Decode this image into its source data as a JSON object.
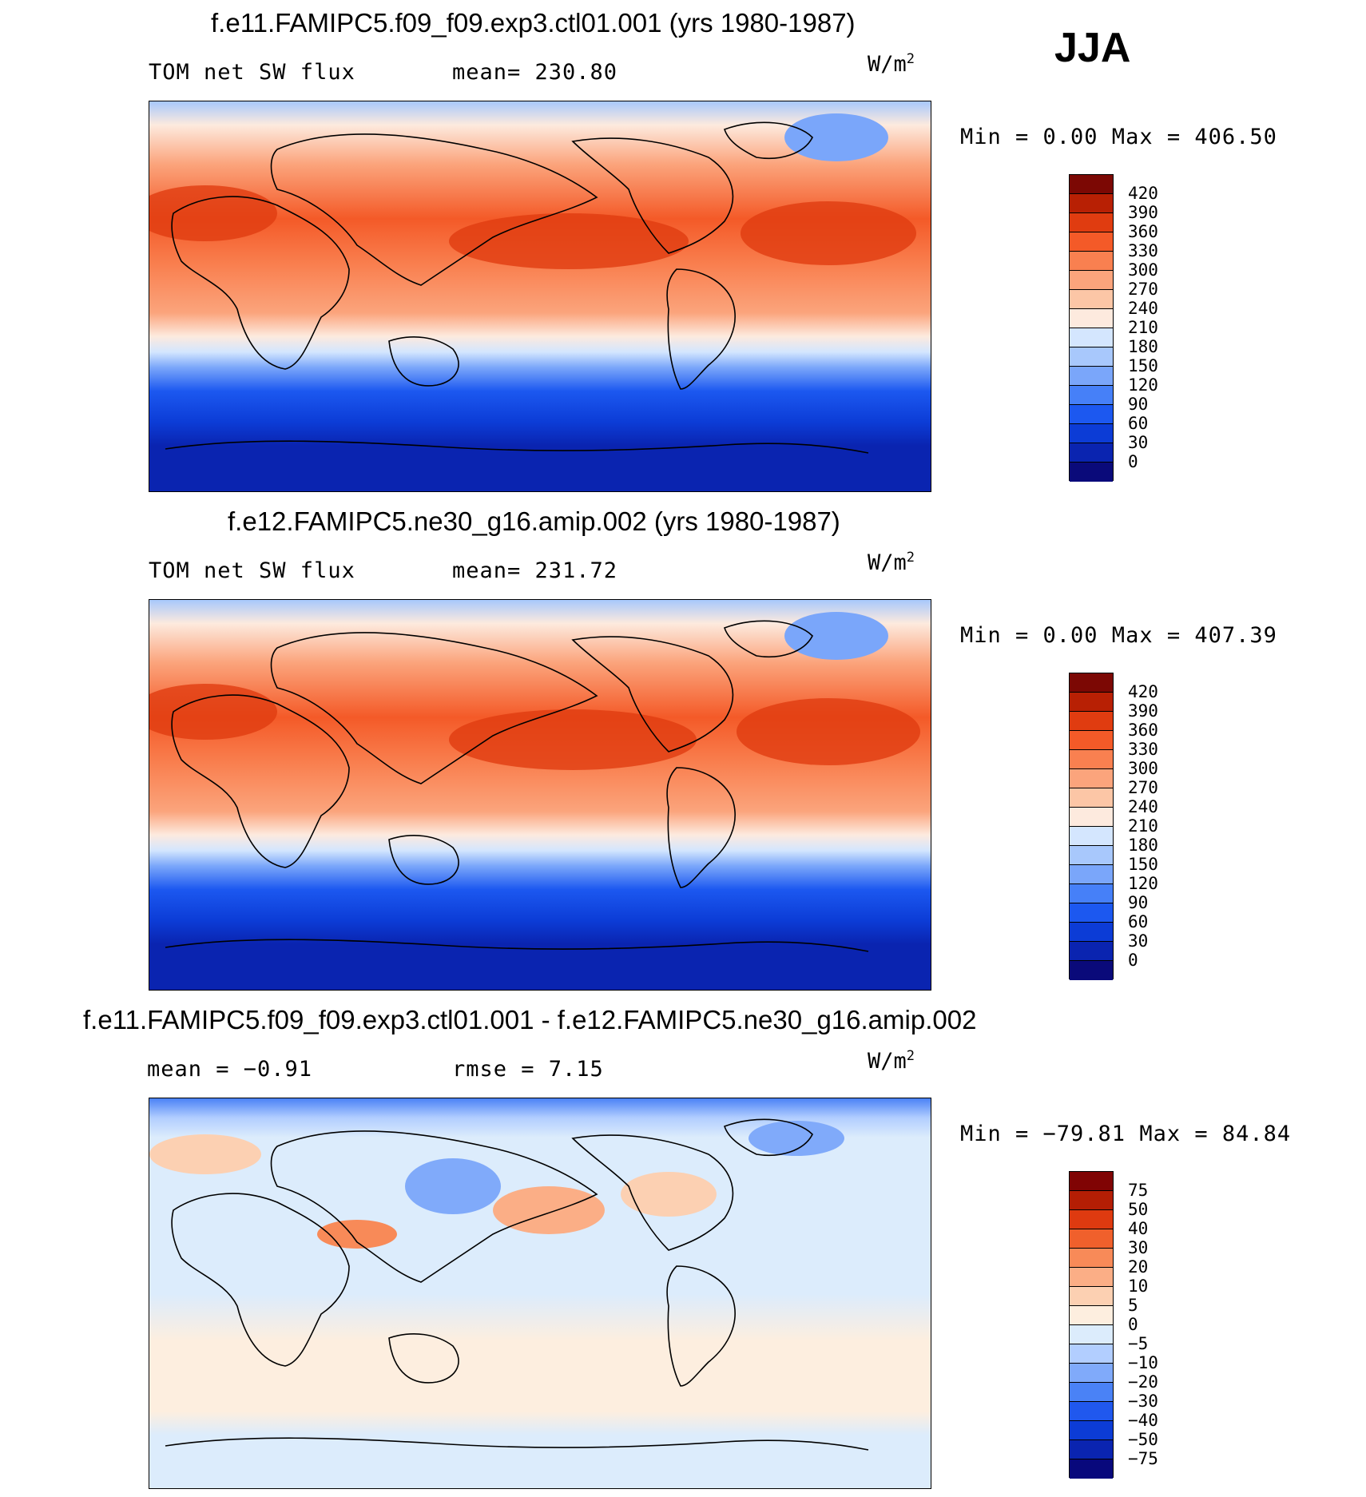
{
  "season": "JJA",
  "units_base": "W/m",
  "units_exp": "2",
  "palette_abs": [
    "#0a0a7a",
    "#0a24b0",
    "#0c3cd6",
    "#1c58f0",
    "#4680f8",
    "#7aa6fa",
    "#a8c8fc",
    "#d4e6fe",
    "#fdeade",
    "#fcc6a6",
    "#fba47c",
    "#f98050",
    "#f45a28",
    "#e03c10",
    "#b82004",
    "#7c0804"
  ],
  "palette_diff": [
    "#08087c",
    "#0a24b0",
    "#0c3cd6",
    "#2058ee",
    "#4a82f6",
    "#80aafa",
    "#b2ceff",
    "#dcecfc",
    "#fdeedf",
    "#fcd0b2",
    "#fbae86",
    "#f88a58",
    "#f0602c",
    "#de3a10",
    "#b41e04",
    "#800404"
  ],
  "panels": [
    {
      "title": "f.e11.FAMIPC5.f09_f09.exp3.ctl01.001 (yrs 1980-1987)",
      "left_label": "TOM net SW flux",
      "stat1": "mean= 230.80",
      "stat2": "",
      "minmax": "Min =     0.00 Max =  406.50",
      "type": "abs",
      "colorbar_labels": [
        "420",
        "390",
        "360",
        "330",
        "300",
        "270",
        "240",
        "210",
        "180",
        "150",
        "120",
        "90",
        "60",
        "30",
        "0"
      ]
    },
    {
      "title": "f.e12.FAMIPC5.ne30_g16.amip.002 (yrs 1980-1987)",
      "left_label": "TOM net SW flux",
      "stat1": "mean= 231.72",
      "stat2": "",
      "minmax": "Min =     0.00 Max =  407.39",
      "type": "abs",
      "colorbar_labels": [
        "420",
        "390",
        "360",
        "330",
        "300",
        "270",
        "240",
        "210",
        "180",
        "150",
        "120",
        "90",
        "60",
        "30",
        "0"
      ]
    },
    {
      "title": "f.e11.FAMIPC5.f09_f09.exp3.ctl01.001 - f.e12.FAMIPC5.ne30_g16.amip.002",
      "left_label": "mean =  −0.91",
      "stat1": "rmse =    7.15",
      "stat2": "",
      "minmax": "Min = −79.81 Max =   84.84",
      "type": "diff",
      "colorbar_labels": [
        "75",
        "50",
        "40",
        "30",
        "20",
        "10",
        "5",
        "0",
        "−5",
        "−10",
        "−20",
        "−30",
        "−40",
        "−50",
        "−75"
      ]
    }
  ]
}
